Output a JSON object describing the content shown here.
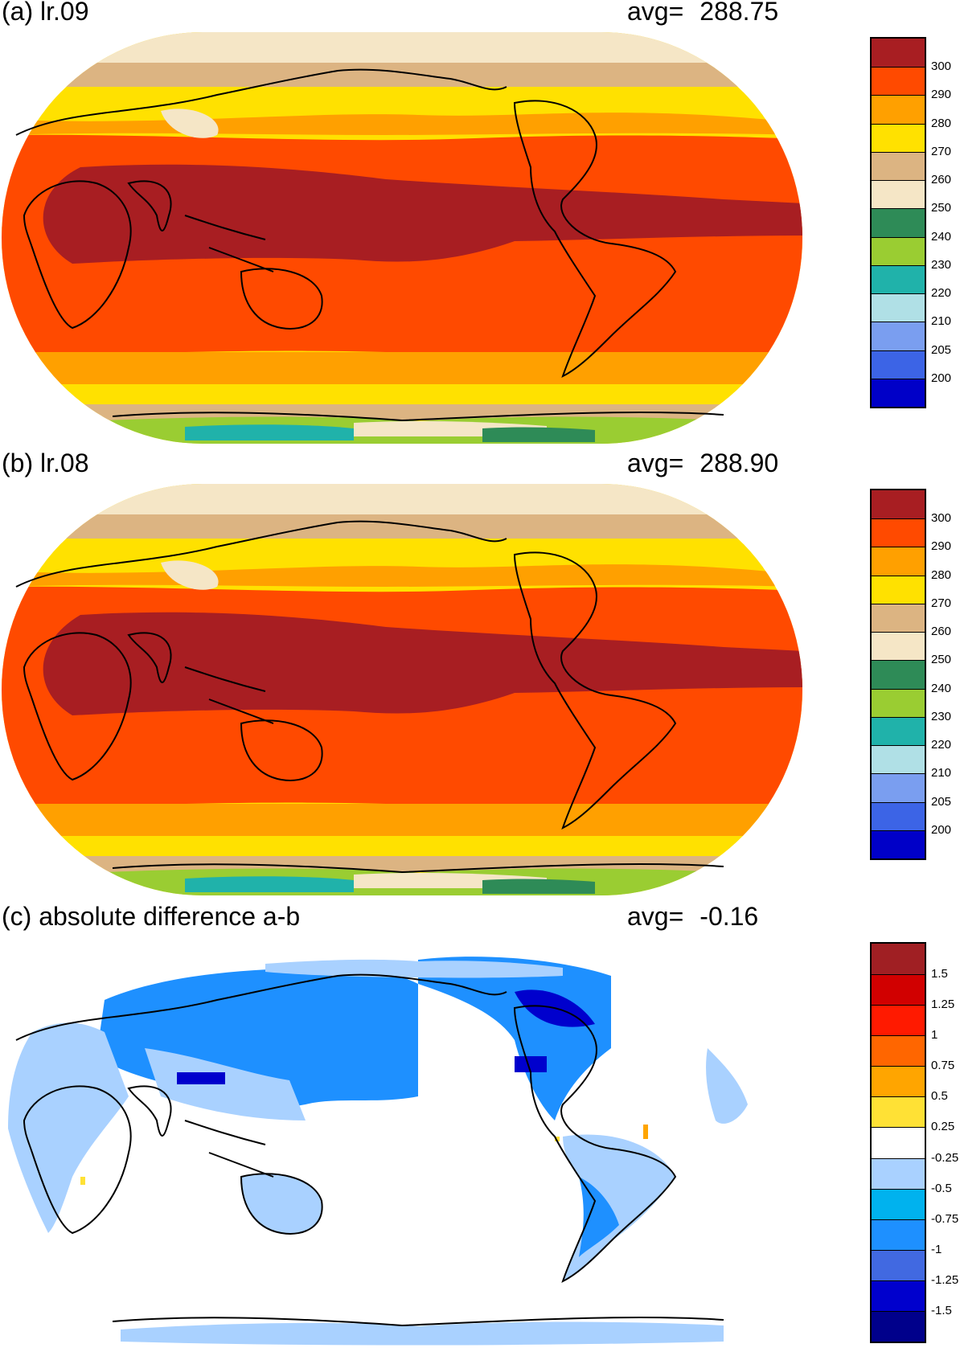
{
  "panels": [
    {
      "title": "(a) lr.09",
      "avg_label": "avg=",
      "avg_value": "288.75",
      "colorbar": {
        "colors": [
          "#a81e22",
          "#ff4a00",
          "#ffa000",
          "#ffe100",
          "#dcb482",
          "#f5e6c6",
          "#2e8b57",
          "#9acd32",
          "#20b2aa",
          "#b0e0e6",
          "#7a9ef0",
          "#3c64e6",
          "#0000c8"
        ],
        "ticks": [
          "300",
          "290",
          "280",
          "270",
          "260",
          "250",
          "240",
          "230",
          "220",
          "210",
          "205",
          "200"
        ]
      }
    },
    {
      "title": "(b) lr.08",
      "avg_label": "avg=",
      "avg_value": "288.90",
      "colorbar": {
        "colors": [
          "#a81e22",
          "#ff4a00",
          "#ffa000",
          "#ffe100",
          "#dcb482",
          "#f5e6c6",
          "#2e8b57",
          "#9acd32",
          "#20b2aa",
          "#b0e0e6",
          "#7a9ef0",
          "#3c64e6",
          "#0000c8"
        ],
        "ticks": [
          "300",
          "290",
          "280",
          "270",
          "260",
          "250",
          "240",
          "230",
          "220",
          "210",
          "205",
          "200"
        ]
      }
    },
    {
      "title": "(c) absolute difference a-b",
      "avg_label": "avg=",
      "avg_value": "-0.16",
      "colorbar": {
        "colors": [
          "#a01f23",
          "#d10000",
          "#ff1a00",
          "#ff6600",
          "#ffa500",
          "#ffe135",
          "#ffffff",
          "#a9d1ff",
          "#00b2ee",
          "#1e90ff",
          "#4169e1",
          "#0000cd",
          "#00008b"
        ],
        "ticks": [
          "1.5",
          "1.25",
          "1",
          "0.75",
          "0.5",
          "0.25",
          "-0.25",
          "-0.5",
          "-0.75",
          "-1",
          "-1.25",
          "-1.5"
        ]
      }
    }
  ]
}
